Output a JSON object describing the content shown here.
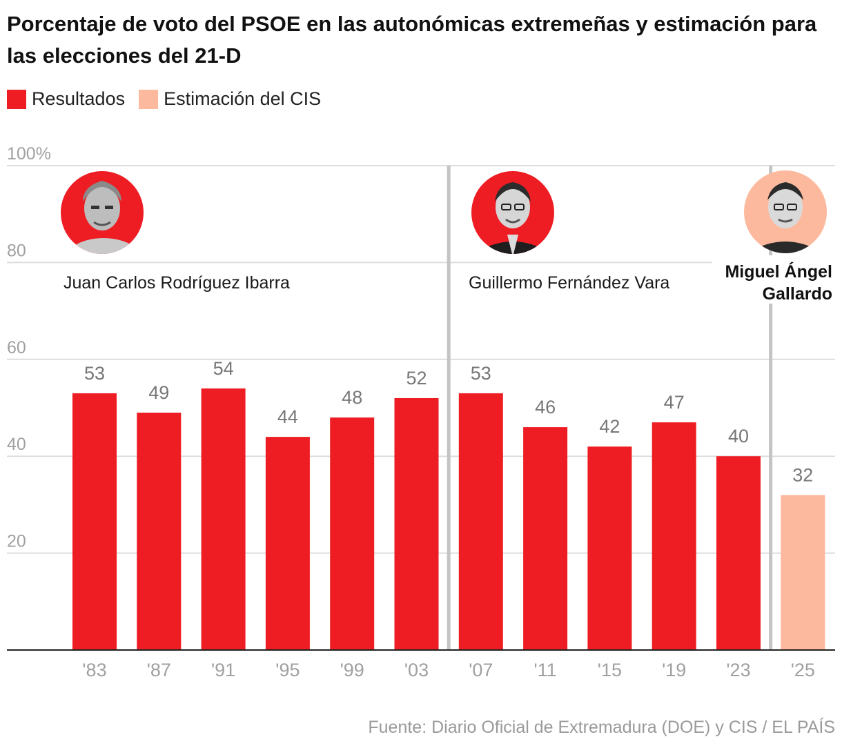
{
  "title": "Porcentaje de voto del PSOE en las autonómicas extremeñas y estimación para las elecciones del 21-D",
  "legend": {
    "results_label": "Resultados",
    "estimate_label": "Estimación del CIS"
  },
  "colors": {
    "results": "#ee1d23",
    "estimate": "#fdb99d",
    "gridline": "#dddddd",
    "divider": "#c4c4c4",
    "tick": "#a0a0a0"
  },
  "footer": "Fuente: Diario Oficial de Extremadura (DOE) y CIS / EL PAÍS",
  "chart_data": {
    "type": "bar",
    "title": "Porcentaje de voto del PSOE en las autonómicas extremeñas y estimación para las elecciones del 21-D",
    "categories": [
      "'83",
      "'87",
      "'91",
      "'95",
      "'99",
      "'03",
      "'07",
      "'11",
      "'15",
      "'19",
      "'23",
      "'25"
    ],
    "series": [
      {
        "name": "Resultados",
        "values": [
          53,
          49,
          54,
          44,
          48,
          52,
          53,
          46,
          42,
          47,
          40,
          null
        ]
      },
      {
        "name": "Estimación del CIS",
        "values": [
          null,
          null,
          null,
          null,
          null,
          null,
          null,
          null,
          null,
          null,
          null,
          32
        ]
      }
    ],
    "value_labels": [
      "53",
      "49",
      "54",
      "44",
      "48",
      "52",
      "53",
      "46",
      "42",
      "47",
      "40",
      "32"
    ],
    "y_ticks": [
      {
        "value": 20,
        "label": "20"
      },
      {
        "value": 40,
        "label": "40"
      },
      {
        "value": 60,
        "label": "60"
      },
      {
        "value": 80,
        "label": "80"
      },
      {
        "value": 100,
        "label": "100%"
      }
    ],
    "ylim": [
      0,
      100
    ],
    "grid": true,
    "legend_position": "top-left",
    "annotations": [
      {
        "text": "Juan Carlos Rodríguez Ibarra",
        "period": "'83–'03"
      },
      {
        "text": "Guillermo Fernández Vara",
        "period": "'07–'23"
      },
      {
        "text": "Miguel Ángel Gallardo",
        "period": "'25"
      }
    ]
  }
}
